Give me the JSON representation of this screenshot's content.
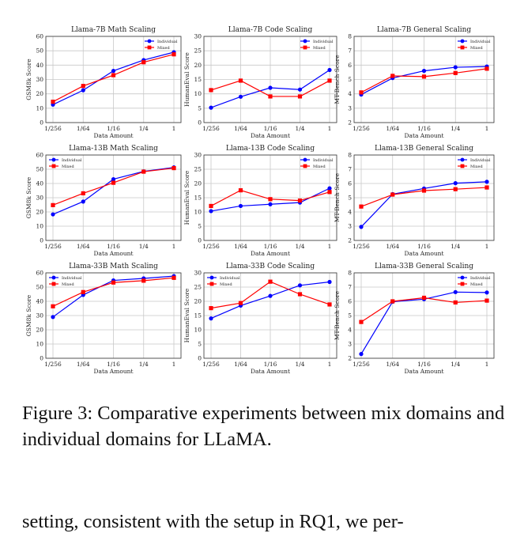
{
  "figure": {
    "caption": "Figure 3: Comparative experiments between mix domains and individual domains for LLaMA.",
    "following_text": "setting, consistent with the setup in RQ1, we per-"
  },
  "colors": {
    "individual": "#0000ff",
    "mixed": "#ff0000"
  },
  "chart_data": [
    {
      "type": "line",
      "title": "Llama-7B Math Scaling",
      "xlabel": "Data Amount",
      "ylabel": "GSM8k Score",
      "categories": [
        "1/256",
        "1/64",
        "1/16",
        "1/4",
        "1"
      ],
      "ylim": [
        0,
        60
      ],
      "yticks": [
        0,
        10,
        20,
        30,
        40,
        50,
        60
      ],
      "grid": true,
      "legend": "top-right",
      "series": [
        {
          "name": "Individual",
          "marker": "circle",
          "values": [
            12.5,
            22.5,
            36,
            43.5,
            49
          ]
        },
        {
          "name": "Mixed",
          "marker": "square",
          "values": [
            14.5,
            25.5,
            33,
            42,
            47.5
          ]
        }
      ]
    },
    {
      "type": "line",
      "title": "Llama-7B Code Scaling",
      "xlabel": "Data Amount",
      "ylabel": "HumanEval Score",
      "categories": [
        "1/256",
        "1/64",
        "1/16",
        "1/4",
        "1"
      ],
      "ylim": [
        0,
        30
      ],
      "yticks": [
        0,
        5,
        10,
        15,
        20,
        25,
        30
      ],
      "grid": true,
      "legend": "top-right",
      "series": [
        {
          "name": "Individual",
          "marker": "circle",
          "values": [
            5.2,
            9,
            12.1,
            11.5,
            18.3
          ]
        },
        {
          "name": "Mixed",
          "marker": "square",
          "values": [
            11.3,
            14.6,
            9.1,
            9.1,
            14.6
          ]
        }
      ]
    },
    {
      "type": "line",
      "title": "Llama-7B General Scaling",
      "xlabel": "Data Amount",
      "ylabel": "MT-Bench Score",
      "categories": [
        "1/256",
        "1/64",
        "1/16",
        "1/4",
        "1"
      ],
      "ylim": [
        2,
        8
      ],
      "yticks": [
        2,
        3,
        4,
        5,
        6,
        7,
        8
      ],
      "grid": true,
      "legend": "top-right",
      "series": [
        {
          "name": "Individual",
          "marker": "circle",
          "values": [
            3.95,
            5.1,
            5.6,
            5.85,
            5.9
          ]
        },
        {
          "name": "Mixed",
          "marker": "square",
          "values": [
            4.1,
            5.25,
            5.2,
            5.45,
            5.75
          ]
        }
      ]
    },
    {
      "type": "line",
      "title": "Llama-13B Math Scaling",
      "xlabel": "Data Amount",
      "ylabel": "GSM8k Score",
      "categories": [
        "1/256",
        "1/64",
        "1/16",
        "1/4",
        "1"
      ],
      "ylim": [
        0,
        60
      ],
      "yticks": [
        0,
        10,
        20,
        30,
        40,
        50,
        60
      ],
      "grid": true,
      "legend": "top-left",
      "series": [
        {
          "name": "Individual",
          "marker": "circle",
          "values": [
            18.3,
            27.3,
            43,
            48.5,
            51.3
          ]
        },
        {
          "name": "Mixed",
          "marker": "square",
          "values": [
            24.8,
            33.1,
            40.5,
            48.3,
            50.8
          ]
        }
      ]
    },
    {
      "type": "line",
      "title": "Llama-13B Code Scaling",
      "xlabel": "Data Amount",
      "ylabel": "HumanEval Score",
      "categories": [
        "1/256",
        "1/64",
        "1/16",
        "1/4",
        "1"
      ],
      "ylim": [
        0,
        30
      ],
      "yticks": [
        0,
        5,
        10,
        15,
        20,
        25,
        30
      ],
      "grid": true,
      "legend": "top-right",
      "series": [
        {
          "name": "Individual",
          "marker": "circle",
          "values": [
            10.3,
            12.1,
            12.7,
            13.3,
            18.3
          ]
        },
        {
          "name": "Mixed",
          "marker": "square",
          "values": [
            12.1,
            17.6,
            14.5,
            14,
            17
          ]
        }
      ]
    },
    {
      "type": "line",
      "title": "Llama-13B General Scaling",
      "xlabel": "Data Amount",
      "ylabel": "MT-Bench Score",
      "categories": [
        "1/256",
        "1/64",
        "1/16",
        "1/4",
        "1"
      ],
      "ylim": [
        2,
        8
      ],
      "yticks": [
        2,
        3,
        4,
        5,
        6,
        7,
        8
      ],
      "grid": true,
      "legend": "top-right",
      "series": [
        {
          "name": "Individual",
          "marker": "circle",
          "values": [
            2.95,
            5.25,
            5.65,
            6.02,
            6.12
          ]
        },
        {
          "name": "Mixed",
          "marker": "square",
          "values": [
            4.38,
            5.22,
            5.5,
            5.6,
            5.72
          ]
        }
      ]
    },
    {
      "type": "line",
      "title": "Llama-33B Math Scaling",
      "xlabel": "Data Amount",
      "ylabel": "GSM8k Score",
      "categories": [
        "1/256",
        "1/64",
        "1/16",
        "1/4",
        "1"
      ],
      "ylim": [
        0,
        60
      ],
      "yticks": [
        0,
        10,
        20,
        30,
        40,
        50,
        60
      ],
      "grid": true,
      "legend": "top-left",
      "series": [
        {
          "name": "Individual",
          "marker": "circle",
          "values": [
            29,
            44.5,
            54.7,
            56.1,
            57.7
          ]
        },
        {
          "name": "Mixed",
          "marker": "square",
          "values": [
            36.5,
            46.5,
            53.2,
            54.5,
            56.5
          ]
        }
      ]
    },
    {
      "type": "line",
      "title": "Llama-33B Code Scaling",
      "xlabel": "Data Amount",
      "ylabel": "HumanEval Score",
      "categories": [
        "1/256",
        "1/64",
        "1/16",
        "1/4",
        "1"
      ],
      "ylim": [
        0,
        30
      ],
      "yticks": [
        0,
        5,
        10,
        15,
        20,
        25,
        30
      ],
      "grid": true,
      "legend": "top-left",
      "series": [
        {
          "name": "Individual",
          "marker": "circle",
          "values": [
            14,
            18.5,
            21.9,
            25.6,
            26.8
          ]
        },
        {
          "name": "Mixed",
          "marker": "square",
          "values": [
            17.6,
            19.4,
            26.9,
            22.5,
            18.9
          ]
        }
      ]
    },
    {
      "type": "line",
      "title": "Llama-33B General Scaling",
      "xlabel": "Data Amount",
      "ylabel": "MT-Bench Score",
      "categories": [
        "1/256",
        "1/64",
        "1/16",
        "1/4",
        "1"
      ],
      "ylim": [
        2,
        8
      ],
      "yticks": [
        2,
        3,
        4,
        5,
        6,
        7,
        8
      ],
      "grid": true,
      "legend": "top-right",
      "series": [
        {
          "name": "Individual",
          "marker": "circle",
          "values": [
            2.3,
            5.97,
            6.15,
            6.65,
            6.62
          ]
        },
        {
          "name": "Mixed",
          "marker": "square",
          "values": [
            4.55,
            6,
            6.25,
            5.92,
            6.05
          ]
        }
      ]
    }
  ]
}
